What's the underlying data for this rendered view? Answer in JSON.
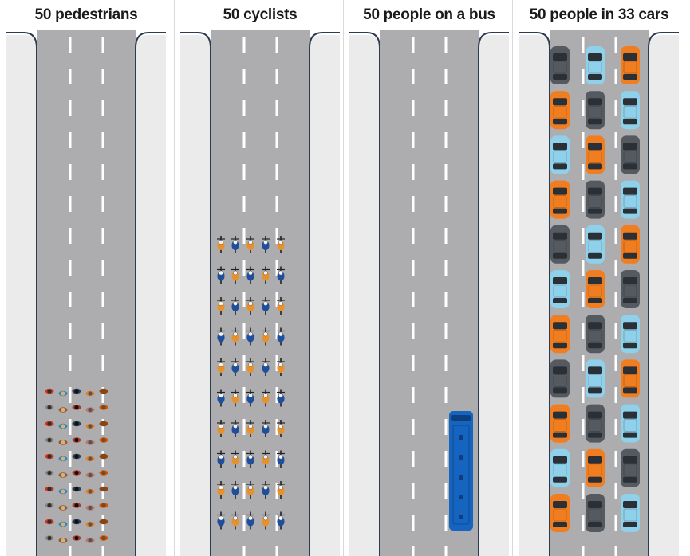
{
  "panels": [
    {
      "id": "pedestrians",
      "title": "50 pedestrians",
      "vehicle": "pedestrian",
      "count": 50
    },
    {
      "id": "cyclists",
      "title": "50 cyclists",
      "vehicle": "cyclist",
      "count": 50
    },
    {
      "id": "bus",
      "title": "50 people on a bus",
      "vehicle": "bus",
      "count": 1
    },
    {
      "id": "cars",
      "title": "50 people in 33 cars",
      "vehicle": "car",
      "count": 33
    }
  ],
  "colors": {
    "road": "#adadb0",
    "sidewalk": "#ebebeb",
    "curb": "#2e3a4f",
    "lane_marking": "#ffffff",
    "bus": "#1565c0",
    "car_orange": "#f07e21",
    "car_gray": "#555a60",
    "car_blue": "#8fd0ea",
    "cyclist_orange": "#e8912b",
    "cyclist_blue": "#1e4f9e"
  }
}
